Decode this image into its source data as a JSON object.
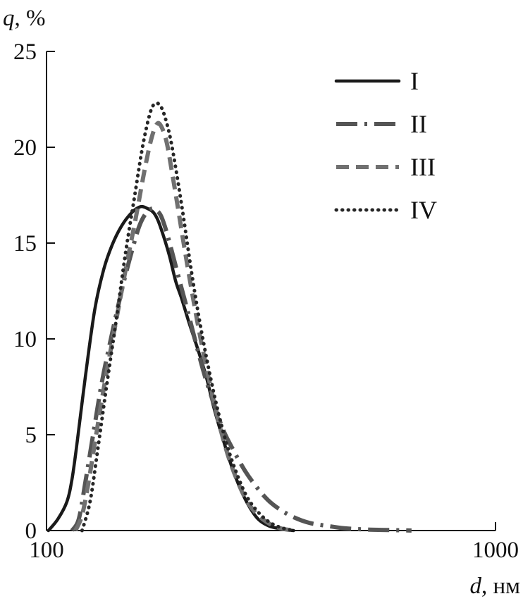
{
  "chart_data": {
    "type": "line",
    "title": "",
    "xlabel": {
      "symbol": "d",
      "unit": ", нм"
    },
    "ylabel": {
      "symbol": "q",
      "unit": ", %"
    },
    "xscale": "log",
    "xlim": [
      100,
      1000
    ],
    "ylim": [
      0,
      25
    ],
    "x_ticks": [
      100,
      1000
    ],
    "x_tick_labels": [
      "100",
      "1000"
    ],
    "y_ticks": [
      0,
      5,
      10,
      15,
      20,
      25
    ],
    "y_tick_labels": [
      "0",
      "5",
      "10",
      "15",
      "20",
      "25"
    ],
    "grid": false,
    "legend": "top-right",
    "series": [
      {
        "name": "I",
        "style": "solid",
        "color": "#1a1a1a",
        "x": [
          101,
          106,
          111,
          114,
          117,
          122,
          128,
          134,
          140,
          147,
          155,
          162,
          168,
          173,
          177,
          182,
          188,
          194,
          200,
          208,
          217,
          227,
          236,
          247,
          258,
          270,
          282,
          296,
          312,
          330,
          346,
          355
        ],
        "y": [
          0,
          0.6,
          1.5,
          2.7,
          4.6,
          8.0,
          11.5,
          13.6,
          14.9,
          15.9,
          16.6,
          16.9,
          16.8,
          16.6,
          16.2,
          15.4,
          14.3,
          13.0,
          12.1,
          10.8,
          9.5,
          8.0,
          6.4,
          4.8,
          3.4,
          2.2,
          1.3,
          0.6,
          0.25,
          0.1,
          0.03,
          0
        ]
      },
      {
        "name": "II",
        "style": "dash-dot",
        "color": "#555555",
        "x": [
          114,
          118,
          122,
          127,
          133,
          140,
          148,
          155,
          161,
          167,
          172,
          176,
          180,
          185,
          191,
          198,
          206,
          215,
          225,
          236,
          248,
          262,
          277,
          293,
          311,
          331,
          355,
          385,
          420,
          460,
          520,
          600,
          650
        ],
        "y": [
          0,
          0.6,
          2.5,
          5.0,
          7.8,
          10.3,
          12.8,
          14.6,
          15.9,
          16.6,
          16.8,
          16.7,
          16.4,
          15.6,
          14.4,
          13.0,
          11.5,
          9.8,
          8.1,
          6.6,
          5.2,
          4.1,
          3.1,
          2.3,
          1.6,
          1.1,
          0.7,
          0.4,
          0.25,
          0.12,
          0.05,
          0.02,
          0
        ]
      },
      {
        "name": "III",
        "style": "dashed",
        "color": "#707070",
        "x": [
          116,
          120,
          124,
          129,
          135,
          142,
          150,
          158,
          165,
          171,
          176,
          180,
          185,
          190,
          196,
          203,
          211,
          220,
          230,
          241,
          253,
          266,
          280,
          296,
          314,
          334,
          358
        ],
        "y": [
          0,
          0.8,
          2.5,
          5.0,
          7.8,
          10.6,
          13.6,
          16.3,
          18.7,
          20.4,
          21.2,
          21.1,
          20.3,
          18.8,
          16.9,
          14.7,
          12.4,
          10.1,
          7.9,
          5.8,
          4.0,
          2.6,
          1.5,
          0.8,
          0.35,
          0.1,
          0
        ]
      },
      {
        "name": "IV",
        "style": "dotted",
        "color": "#262626",
        "x": [
          120,
          125,
          130,
          136,
          143,
          150,
          157,
          163,
          168,
          172,
          176,
          180,
          184,
          189,
          195,
          202,
          210,
          219,
          229,
          240,
          252,
          265,
          279,
          295,
          313,
          333,
          355
        ],
        "y": [
          0,
          1.5,
          4.2,
          7.5,
          11.0,
          14.5,
          17.4,
          19.8,
          21.3,
          22.1,
          22.3,
          22.1,
          21.5,
          20.4,
          18.6,
          16.3,
          13.6,
          11.0,
          8.6,
          6.4,
          4.5,
          3.0,
          1.8,
          1.0,
          0.45,
          0.15,
          0
        ]
      }
    ]
  }
}
